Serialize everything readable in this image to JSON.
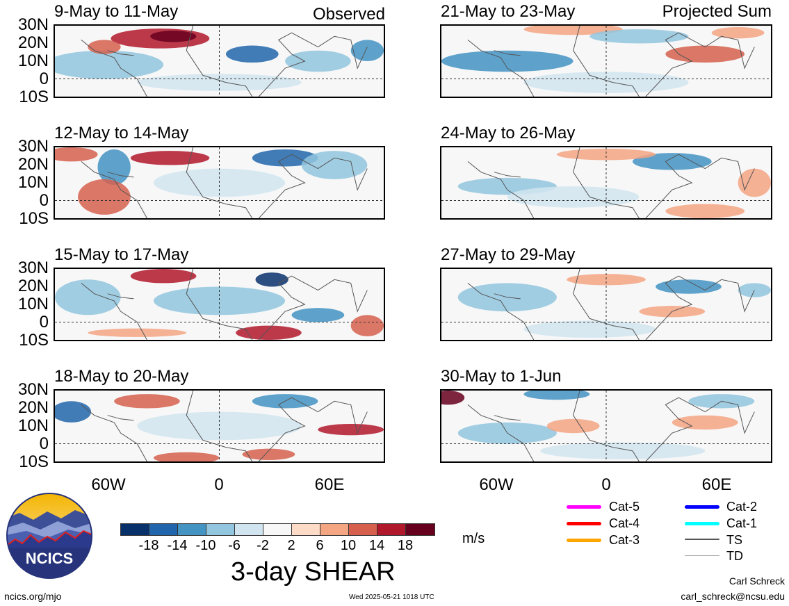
{
  "header": {
    "observed_label": "Observed",
    "projected_label": "Projected Sum"
  },
  "panels": {
    "left": [
      {
        "title": "9-May to 11-May"
      },
      {
        "title": "12-May to 14-May"
      },
      {
        "title": "15-May to 17-May"
      },
      {
        "title": "18-May to 20-May"
      }
    ],
    "right": [
      {
        "title": "21-May to 23-May"
      },
      {
        "title": "24-May to 26-May"
      },
      {
        "title": "27-May to 29-May"
      },
      {
        "title": "30-May to 1-Jun"
      }
    ]
  },
  "axes": {
    "lat_labels": [
      "30N",
      "20N",
      "10N",
      "0",
      "10S"
    ],
    "lon_labels": [
      "60W",
      "0",
      "60E"
    ]
  },
  "colorbar": {
    "ticks": [
      "-18",
      "-14",
      "-10",
      "-6",
      "-2",
      "2",
      "6",
      "10",
      "14",
      "18"
    ],
    "colors": [
      "#08306b",
      "#2166ac",
      "#4393c3",
      "#92c5de",
      "#d1e5f0",
      "#f7f7f7",
      "#fddbc7",
      "#f4a582",
      "#d6604d",
      "#b2182b",
      "#67001f"
    ],
    "units": "m/s",
    "title": "3-day SHEAR"
  },
  "storm_legend": [
    {
      "label": "Cat-5",
      "color": "#ff00ff"
    },
    {
      "label": "Cat-4",
      "color": "#ff0000"
    },
    {
      "label": "Cat-3",
      "color": "#ffa500"
    },
    {
      "label": "Cat-2",
      "color": "#0000ff"
    },
    {
      "label": "Cat-1",
      "color": "#00ffff"
    },
    {
      "label": "TS",
      "color": "#555555"
    },
    {
      "label": "TD",
      "color": "#aaaaaa"
    }
  ],
  "logo": {
    "text": "NCICS"
  },
  "footer": {
    "url": "ncics.org/mjo",
    "timestamp": "Wed 2025-05-21 1018 UTC",
    "author": "Carl Schreck",
    "email": "carl_schreck@ncsu.edu"
  }
}
